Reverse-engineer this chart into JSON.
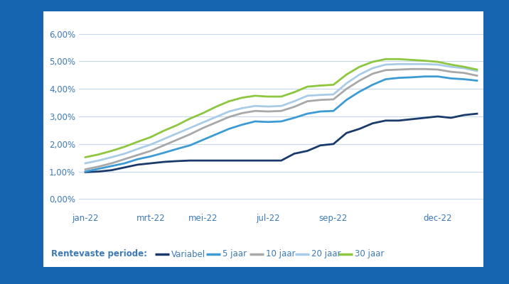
{
  "background_outer": "#1565b0",
  "background_card": "#ffffff",
  "x_labels": [
    "jan-22",
    "mrt-22",
    "mei-22",
    "jul-22",
    "sep-22",
    "dec-22"
  ],
  "y_tick_labels": [
    "0,00%",
    "1,00%",
    "2,00%",
    "3,00%",
    "4,00%",
    "5,00%",
    "6,00%"
  ],
  "y_ticks": [
    0.0,
    0.01,
    0.02,
    0.03,
    0.04,
    0.05,
    0.06
  ],
  "legend_label": "Rentevaste periode:",
  "series_order": [
    "Variabel",
    "5 jaar",
    "10 jaar",
    "20 jaar",
    "30 jaar"
  ],
  "series": {
    "Variabel": {
      "color": "#1a3a6b",
      "linewidth": 2.0,
      "values": [
        0.0098,
        0.01,
        0.0105,
        0.0115,
        0.0125,
        0.013,
        0.0135,
        0.0138,
        0.014,
        0.014,
        0.014,
        0.014,
        0.014,
        0.014,
        0.014,
        0.014,
        0.0165,
        0.0175,
        0.0195,
        0.02,
        0.024,
        0.0255,
        0.0275,
        0.0285,
        0.0285,
        0.029,
        0.0295,
        0.03,
        0.0295,
        0.0305,
        0.031
      ]
    },
    "5 jaar": {
      "color": "#3d9bd4",
      "linewidth": 2.0,
      "values": [
        0.01,
        0.011,
        0.012,
        0.013,
        0.0145,
        0.0155,
        0.0168,
        0.0182,
        0.0195,
        0.0215,
        0.0235,
        0.0255,
        0.027,
        0.0282,
        0.028,
        0.0282,
        0.0295,
        0.031,
        0.0318,
        0.032,
        0.036,
        0.039,
        0.0415,
        0.0435,
        0.044,
        0.0442,
        0.0445,
        0.0445,
        0.0438,
        0.0435,
        0.043
      ]
    },
    "10 jaar": {
      "color": "#a8a8a8",
      "linewidth": 2.0,
      "values": [
        0.0108,
        0.0118,
        0.013,
        0.0145,
        0.016,
        0.0175,
        0.0195,
        0.0215,
        0.0235,
        0.0258,
        0.0278,
        0.0298,
        0.0312,
        0.032,
        0.0318,
        0.032,
        0.0335,
        0.0355,
        0.036,
        0.0362,
        0.04,
        0.043,
        0.0455,
        0.0468,
        0.047,
        0.0472,
        0.0472,
        0.047,
        0.0462,
        0.0458,
        0.0448
      ]
    },
    "20 jaar": {
      "color": "#a8cce8",
      "linewidth": 2.0,
      "values": [
        0.013,
        0.014,
        0.0152,
        0.0165,
        0.0182,
        0.0198,
        0.0218,
        0.0238,
        0.0258,
        0.0278,
        0.0298,
        0.0318,
        0.033,
        0.0338,
        0.0336,
        0.0338,
        0.0355,
        0.0375,
        0.0378,
        0.038,
        0.042,
        0.0452,
        0.0475,
        0.0488,
        0.049,
        0.049,
        0.049,
        0.0488,
        0.048,
        0.0475,
        0.0465
      ]
    },
    "30 jaar": {
      "color": "#8dc63f",
      "linewidth": 2.0,
      "values": [
        0.0152,
        0.0162,
        0.0175,
        0.019,
        0.0208,
        0.0225,
        0.0248,
        0.0268,
        0.0292,
        0.0312,
        0.0335,
        0.0355,
        0.0368,
        0.0375,
        0.0372,
        0.0372,
        0.0388,
        0.0408,
        0.0412,
        0.0415,
        0.0452,
        0.048,
        0.0498,
        0.0508,
        0.0508,
        0.0505,
        0.0502,
        0.0498,
        0.0488,
        0.048,
        0.047
      ]
    }
  },
  "grid_color": "#c8d8ec",
  "axis_label_color": "#3d7ab5",
  "axis_label_fontsize": 8.5,
  "legend_fontsize": 8.5,
  "x_tick_positions": [
    0,
    5,
    9,
    14,
    19,
    27
  ],
  "n_points": 31
}
